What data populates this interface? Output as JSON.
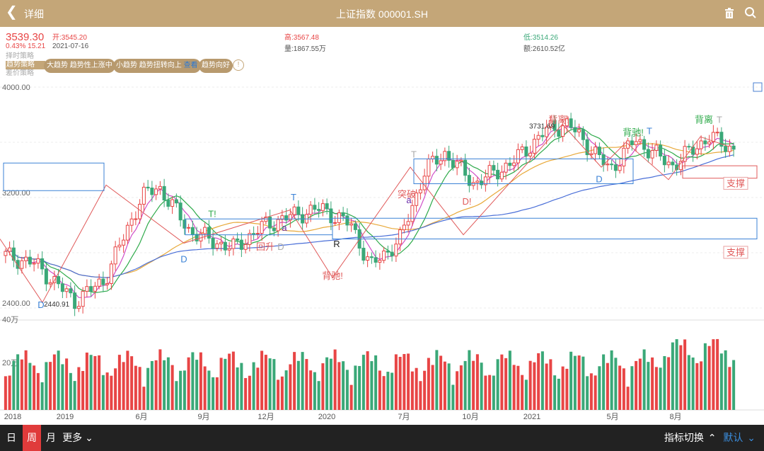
{
  "header": {
    "back_label": "详细",
    "title": "上证指数 000001.SH"
  },
  "quote": {
    "price": "3539.30",
    "change": "0.43% 15.21",
    "date": "2021-07-16",
    "open_label": "开:",
    "open": "3545.20",
    "high_label": "高:",
    "high": "3567.48",
    "volume_label": "量:",
    "volume": "1867.55万",
    "low_label": "低:",
    "low": "3514.26",
    "amount_label": "额:",
    "amount": "2610.52亿"
  },
  "strategy": {
    "tabs": [
      "择时策略",
      "趋势策略",
      "差价策略"
    ],
    "active_tab": "趋势策略",
    "pill1": "大趋势 趋势性上涨中",
    "pill2": "小趋势 趋势扭转向上",
    "pill2_link": "查看",
    "pill3": "趋势向好",
    "info": "!"
  },
  "chart_data": {
    "type": "candlestick",
    "price_axis": {
      "ticks": [
        "4000.00",
        "3200.00",
        "2400.00"
      ],
      "ylim": [
        2400,
        4000
      ]
    },
    "volume_axis": {
      "ticks": [
        "40万",
        "20万"
      ],
      "ylim": [
        0,
        400000
      ]
    },
    "x_labels": [
      "2018",
      "2019",
      "6月",
      "9月",
      "12月",
      "2020",
      "7月",
      "10月",
      "2021",
      "5月",
      "8月"
    ],
    "annotations": {
      "low_value": "2440.91",
      "high_value": "3731.69",
      "labels": [
        "D",
        "D",
        "T!",
        "T",
        "回升",
        "D",
        "R",
        "背驰!",
        "T",
        "突破",
        "a",
        "D!",
        "背离!",
        "D",
        "背驰!",
        "T",
        "背离",
        "T",
        "a",
        "支撑",
        "支撑"
      ]
    },
    "colors": {
      "up": "#e84545",
      "down": "#3aa878",
      "ma1": "#d04fc8",
      "ma2": "#2eaa4a",
      "ma3": "#e8a93a",
      "ma4": "#4a6fd8"
    }
  },
  "bottom": {
    "periods": [
      "日",
      "周",
      "月"
    ],
    "active_period": "周",
    "more": "更多",
    "indicator_switch": "指标切换",
    "default": "默认"
  }
}
